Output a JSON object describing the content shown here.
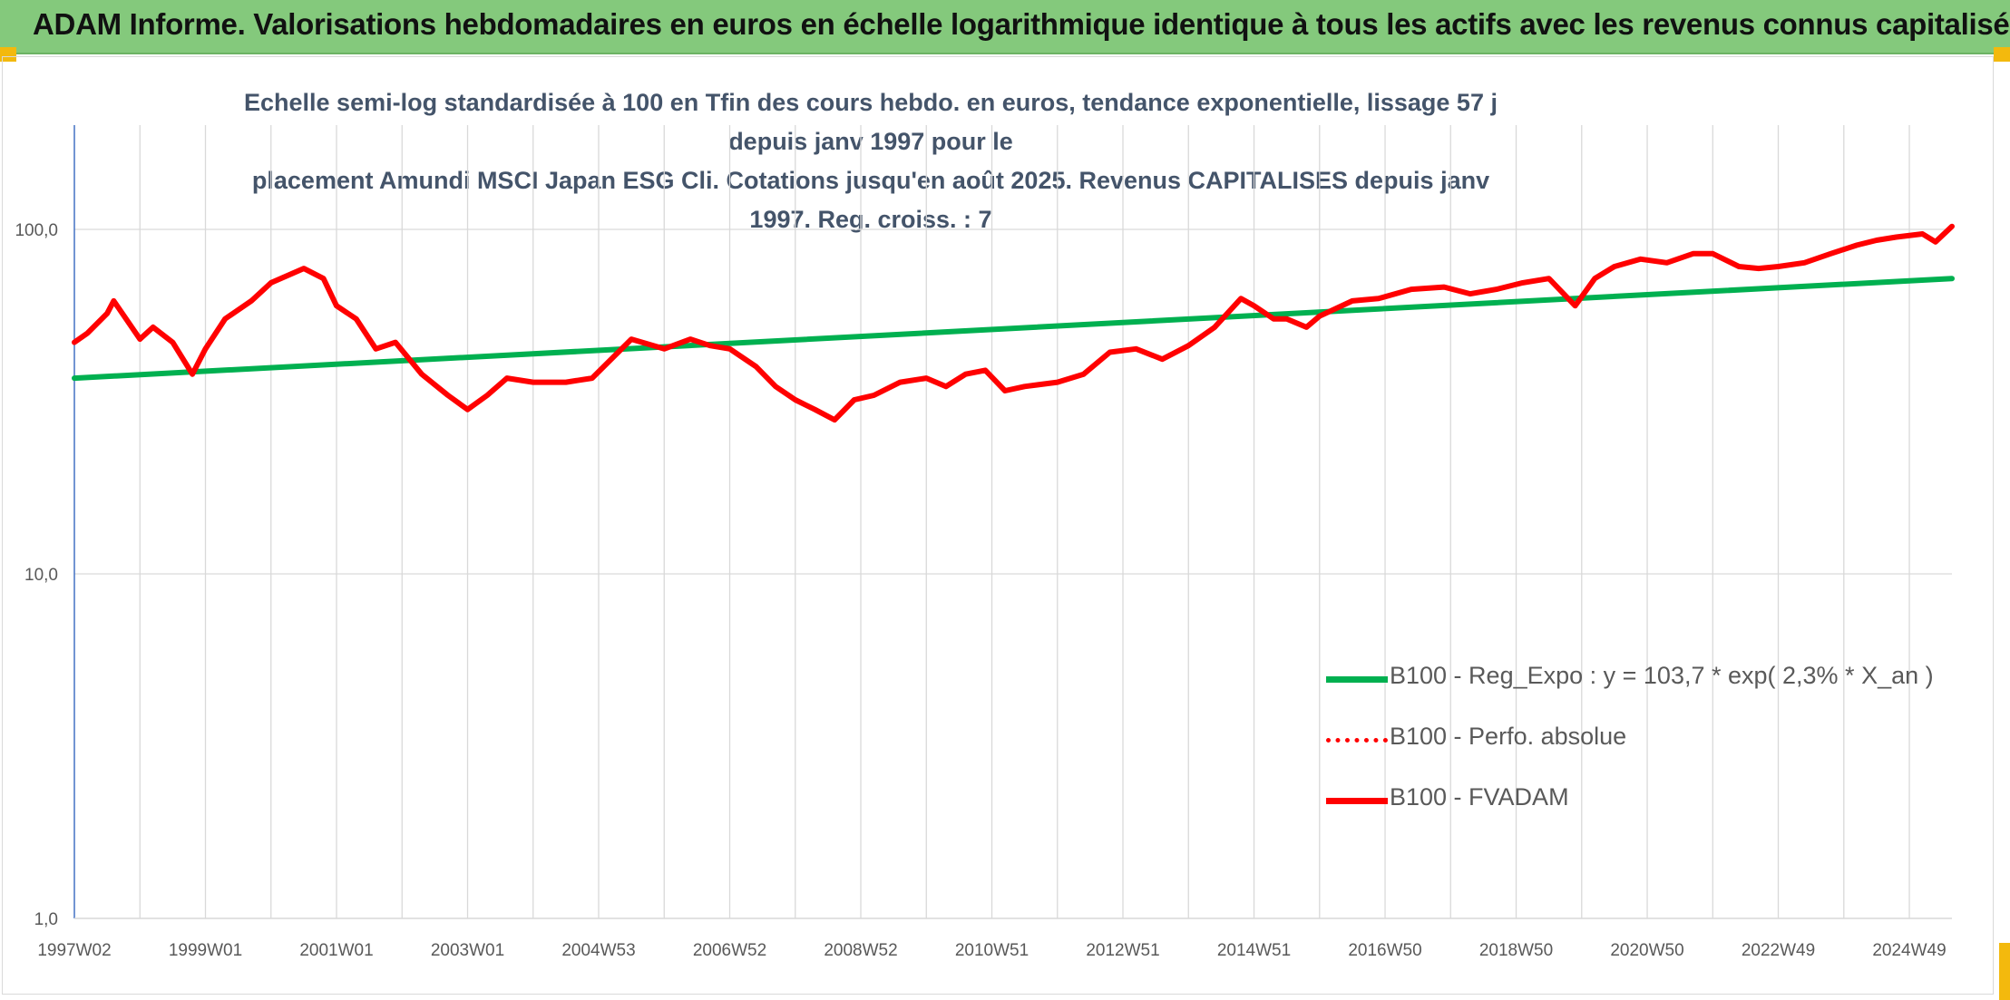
{
  "banner": {
    "title": "ADAM Informe. Valorisations hebdomadaires en euros en échelle logarithmique identique à tous les actifs avec les revenus connus capitalisés",
    "background": "#84c97c",
    "corner_color": "#f3b90d"
  },
  "chart_data": {
    "type": "line",
    "title": "Echelle semi-log standardisée à 100 en Tfin des cours hebdo. en euros, tendance exponentielle, lissage 57 j depuis janv 1997 pour le placement Amundi MSCI Japan ESG Cli. Cotations jusqu'en août 2025. Revenus CAPITALISES depuis janv 1997. Reg. croiss. : 7",
    "title_lines": [
      "Echelle semi-log standardisée à 100 en Tfin des cours hebdo. en euros, tendance exponentielle, lissage 57 j depuis janv 1997 pour le",
      "placement Amundi MSCI Japan ESG Cli. Cotations jusqu'en août 2025. Revenus CAPITALISES depuis janv 1997. Reg. croiss. : 7"
    ],
    "y_scale": "log",
    "ylim": [
      1,
      200
    ],
    "y_ticks": [
      1,
      10,
      100
    ],
    "y_tick_labels": [
      "1,0",
      "10,0",
      "100,0"
    ],
    "x_range": [
      1997.0,
      2025.65
    ],
    "x_ticks": [
      1997.0,
      1999.0,
      2001.0,
      2003.0,
      2005.0,
      2007.0,
      2009.0,
      2011.0,
      2013.0,
      2015.0,
      2017.0,
      2019.0,
      2021.0,
      2023.0,
      2025.0
    ],
    "x_tick_labels": [
      "1997W02",
      "1999W01",
      "2001W01",
      "2003W01",
      "2004W53",
      "2006W52",
      "2008W52",
      "2010W51",
      "2012W51",
      "2014W51",
      "2016W50",
      "2018W50",
      "2020W50",
      "2022W49",
      "2024W49"
    ],
    "grid": true,
    "legend_position": "bottom-right",
    "series": [
      {
        "name": "B100 - Reg_Expo : y = 103,7 * exp( 2,3% *  X_an )",
        "color": "#00b050",
        "style": "solid",
        "x": [
          1997.0,
          2025.65
        ],
        "y": [
          37,
          72
        ]
      },
      {
        "name": "B100 - Perfo. absolue",
        "color": "#ff0000",
        "style": "dotted",
        "x": [],
        "y": []
      },
      {
        "name": "B100 - FVADAM",
        "color": "#ff0000",
        "style": "solid",
        "x": [
          1997.0,
          1997.2,
          1997.5,
          1997.6,
          1998.0,
          1998.2,
          1998.5,
          1998.8,
          1999.0,
          1999.3,
          1999.7,
          2000.0,
          2000.5,
          2000.8,
          2001.0,
          2001.3,
          2001.6,
          2001.9,
          2002.3,
          2002.7,
          2003.0,
          2003.3,
          2003.6,
          2004.0,
          2004.5,
          2004.9,
          2005.5,
          2006.0,
          2006.4,
          2006.7,
          2007.0,
          2007.4,
          2007.7,
          2008.0,
          2008.3,
          2008.6,
          2008.9,
          2009.2,
          2009.6,
          2010.0,
          2010.3,
          2010.6,
          2010.9,
          2011.2,
          2011.5,
          2012.0,
          2012.4,
          2012.8,
          2013.2,
          2013.6,
          2014.0,
          2014.4,
          2014.8,
          2015.0,
          2015.3,
          2015.5,
          2015.8,
          2016.0,
          2016.5,
          2016.9,
          2017.4,
          2017.9,
          2018.3,
          2018.7,
          2019.1,
          2019.5,
          2019.9,
          2020.2,
          2020.5,
          2020.9,
          2021.3,
          2021.7,
          2022.0,
          2022.4,
          2022.7,
          2023.0,
          2023.4,
          2023.8,
          2024.2,
          2024.5,
          2024.8,
          2025.2,
          2025.4,
          2025.65
        ],
        "y": [
          47,
          50,
          57,
          62,
          48,
          52,
          47,
          38,
          45,
          55,
          62,
          70,
          77,
          72,
          60,
          55,
          45,
          47,
          38,
          33,
          30,
          33,
          37,
          36,
          36,
          37,
          48,
          45,
          48,
          46,
          45,
          40,
          35,
          32,
          30,
          28,
          32,
          33,
          36,
          37,
          35,
          38,
          39,
          34,
          35,
          36,
          38,
          44,
          45,
          42,
          46,
          52,
          63,
          60,
          55,
          55,
          52,
          56,
          62,
          63,
          67,
          68,
          65,
          67,
          70,
          72,
          60,
          72,
          78,
          82,
          80,
          85,
          85,
          78,
          77,
          78,
          80,
          85,
          90,
          93,
          95,
          97,
          92,
          102
        ]
      }
    ]
  }
}
